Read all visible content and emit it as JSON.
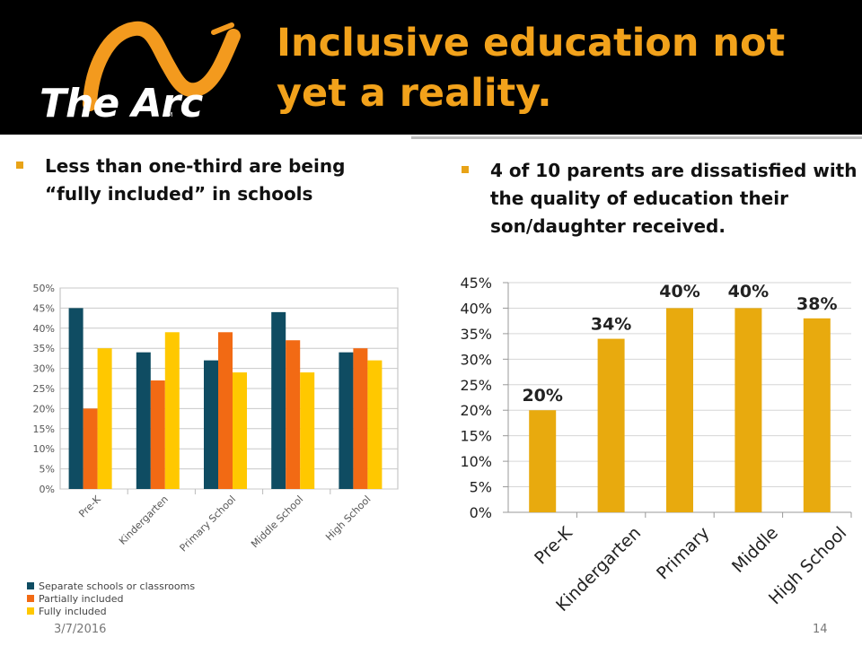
{
  "header": {
    "logo_text": "The Arc",
    "logo_tm": "TM",
    "title_line1": "Inclusive education not",
    "title_line2": "yet a reality."
  },
  "bullets": {
    "left": "Less than one-third are being “fully included” in schools",
    "right": "4 of 10 parents are dissatisfied with the quality of education their son/daughter received."
  },
  "footer": {
    "date": "3/7/2016",
    "page": "14"
  },
  "colors": {
    "header_bg": "#000000",
    "title": "#F2A21B",
    "bullet": "#E8A317",
    "separate": "#0F4C62",
    "partial": "#F26A14",
    "full": "#FFC800",
    "dissatisfied": "#E8AA0E"
  },
  "chart_data": [
    {
      "type": "bar",
      "categories": [
        "Pre-K",
        "Kindergarten",
        "Primary School",
        "Middle School",
        "High School"
      ],
      "series": [
        {
          "name": "Separate schools or classrooms",
          "values": [
            45,
            34,
            32,
            44,
            34
          ]
        },
        {
          "name": "Partially included",
          "values": [
            20,
            27,
            39,
            37,
            35
          ]
        },
        {
          "name": "Fully included",
          "values": [
            35,
            39,
            29,
            29,
            32
          ]
        }
      ],
      "y_ticks": [
        "0%",
        "5%",
        "10%",
        "15%",
        "20%",
        "25%",
        "30%",
        "35%",
        "40%",
        "45%",
        "50%"
      ],
      "ylim": [
        0,
        50
      ],
      "grid": true,
      "legend": "bottom"
    },
    {
      "type": "bar",
      "categories": [
        "Pre-K",
        "Kindergarten",
        "Primary",
        "Middle",
        "High School"
      ],
      "values": [
        20,
        34,
        40,
        40,
        38
      ],
      "data_labels": [
        "20%",
        "34%",
        "40%",
        "40%",
        "38%"
      ],
      "y_ticks": [
        "0%",
        "5%",
        "10%",
        "15%",
        "20%",
        "25%",
        "30%",
        "35%",
        "40%",
        "45%"
      ],
      "ylim": [
        0,
        45
      ],
      "grid": true
    }
  ]
}
